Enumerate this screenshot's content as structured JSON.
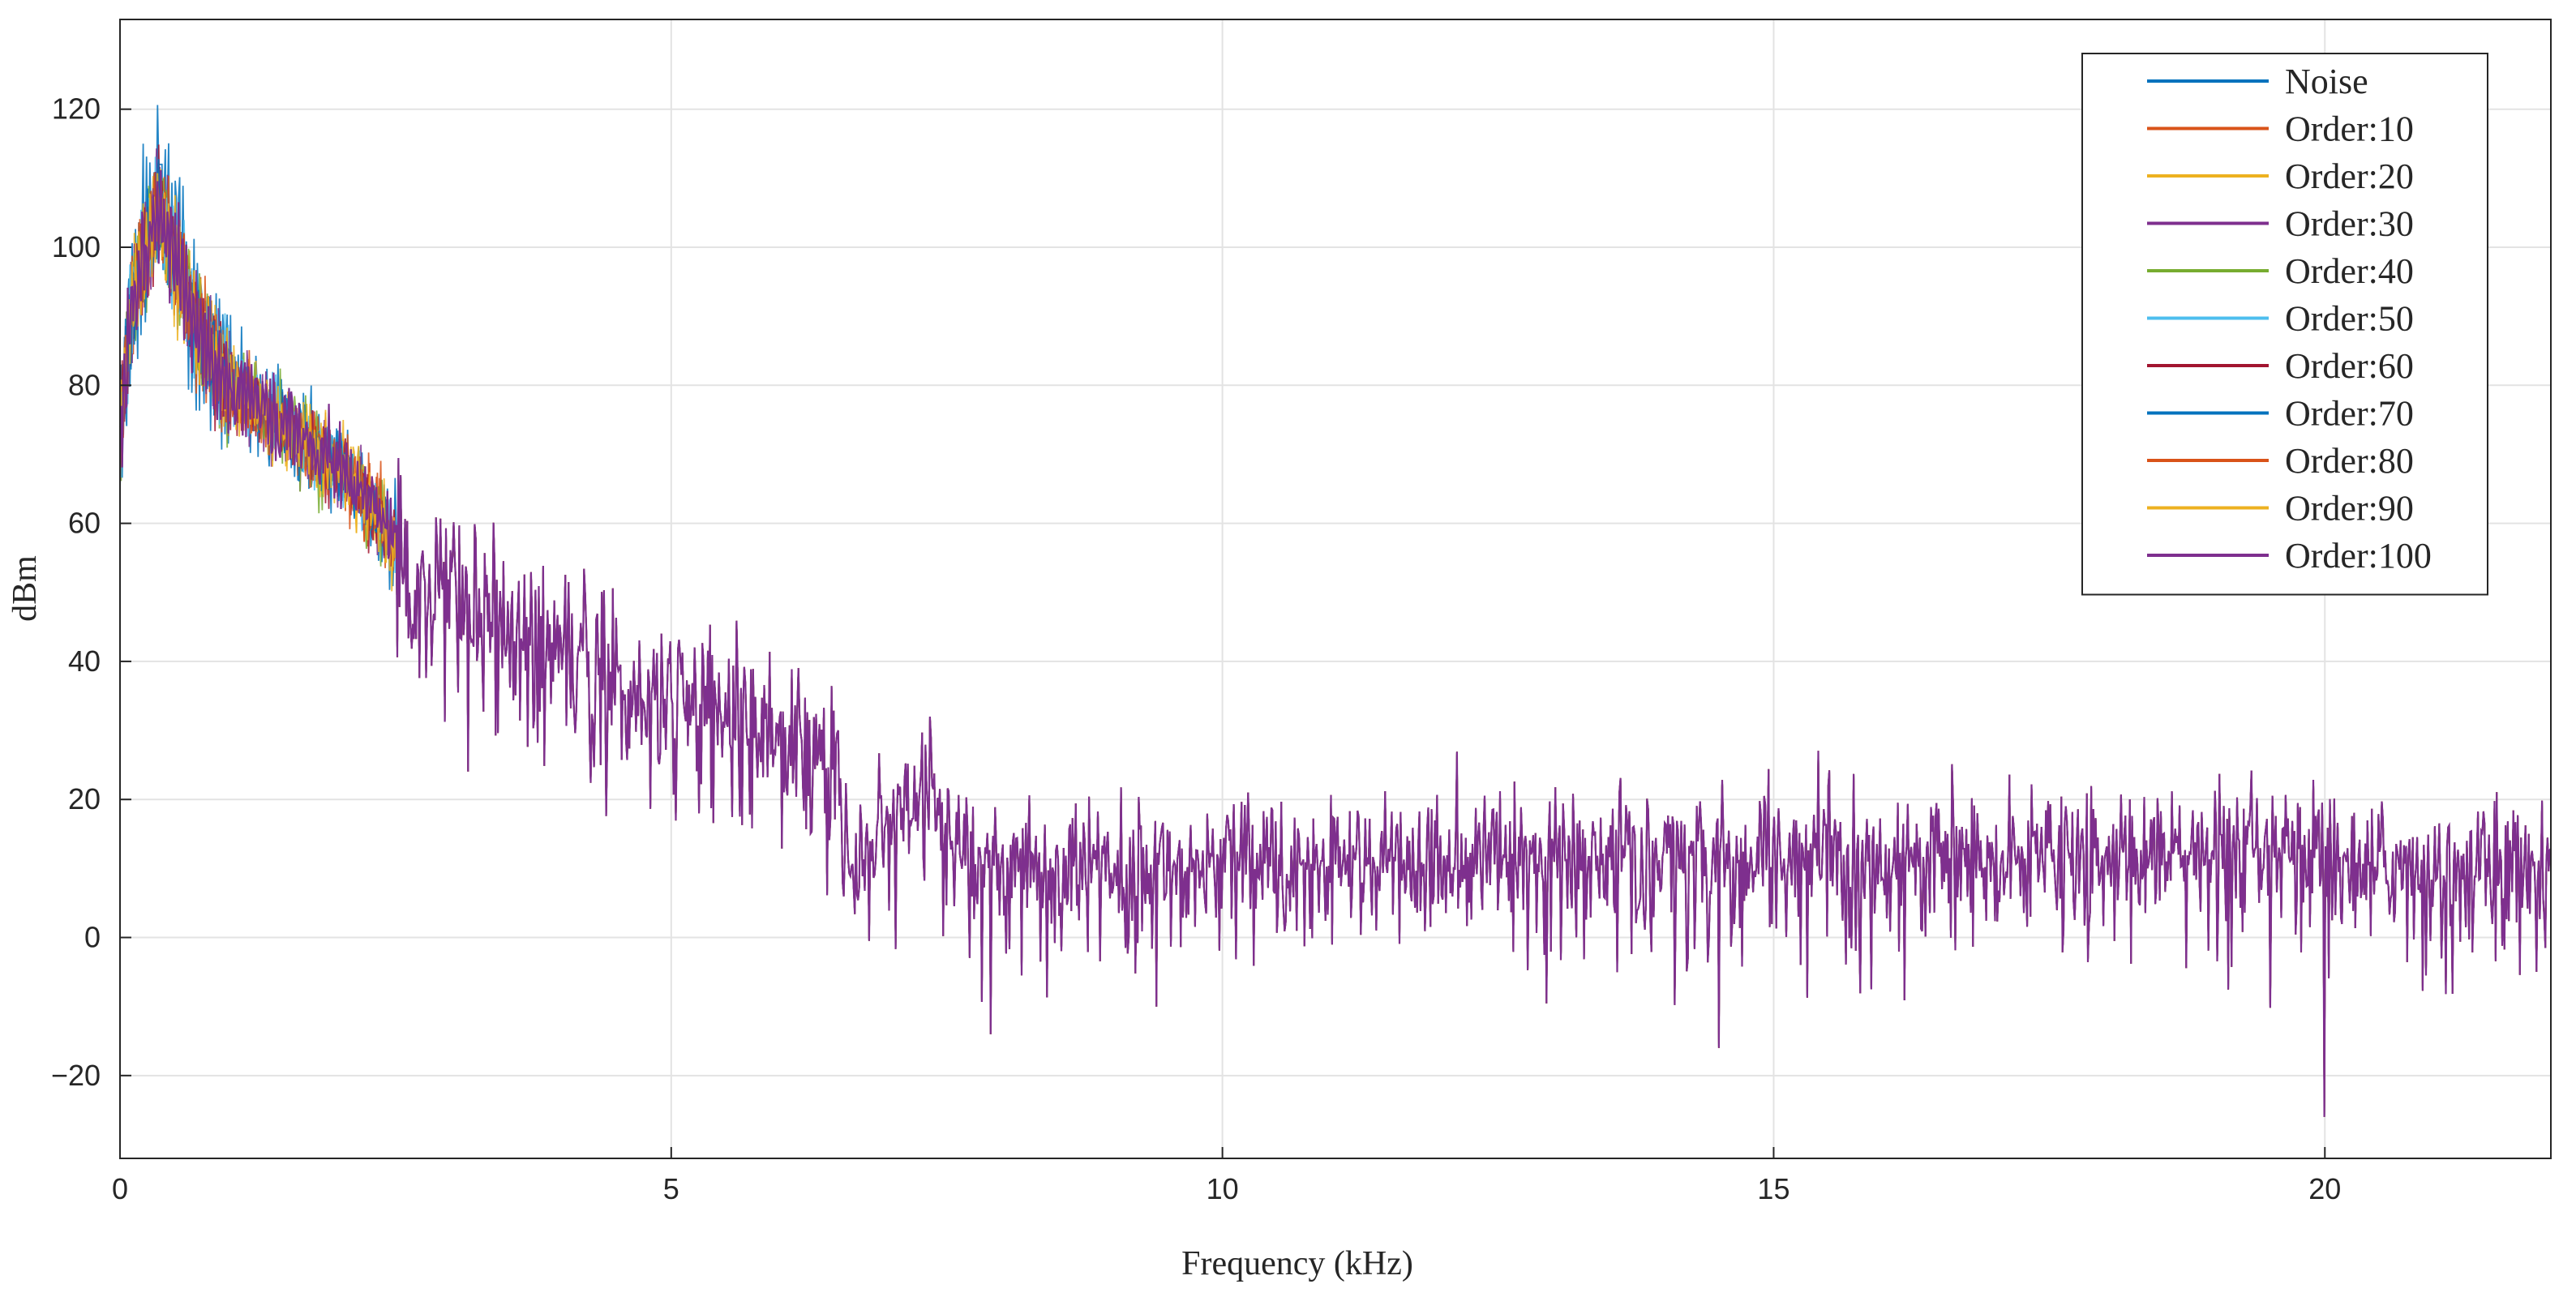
{
  "chart_data": {
    "type": "line",
    "title": "",
    "xlabel": "Frequency (kHz)",
    "ylabel": "dBm",
    "xlim": [
      0,
      22.05
    ],
    "ylim": [
      -32,
      133
    ],
    "x_ticks": [
      0,
      5,
      10,
      15,
      20
    ],
    "y_ticks": [
      -20,
      0,
      20,
      40,
      60,
      80,
      100,
      120
    ],
    "grid": true,
    "legend_position": "top-right",
    "series": [
      {
        "name": "Noise",
        "color": "#0072BD"
      },
      {
        "name": "Order:10",
        "color": "#D95319"
      },
      {
        "name": "Order:20",
        "color": "#EDB120"
      },
      {
        "name": "Order:30",
        "color": "#7E2F8E"
      },
      {
        "name": "Order:40",
        "color": "#77AC30"
      },
      {
        "name": "Order:50",
        "color": "#4DBEEE"
      },
      {
        "name": "Order:60",
        "color": "#A2142F"
      },
      {
        "name": "Order:70",
        "color": "#0072BD"
      },
      {
        "name": "Order:80",
        "color": "#D95319"
      },
      {
        "name": "Order:90",
        "color": "#EDB120"
      },
      {
        "name": "Order:100",
        "color": "#7E2F8E"
      }
    ],
    "envelope": {
      "x": [
        0,
        0.1,
        0.25,
        0.35,
        0.5,
        0.7,
        1.0,
        1.5,
        2.0,
        2.4,
        2.6,
        3.0,
        3.5,
        4.0,
        4.5,
        5.0,
        5.5,
        6.0,
        6.5,
        6.6,
        7.0,
        7.35,
        7.6,
        8.0,
        10.0,
        12.0,
        13.5,
        15.5,
        18.0,
        20.0,
        22.05
      ],
      "y": [
        72,
        92,
        100,
        106,
        98,
        88,
        80,
        74,
        68,
        60,
        53,
        50,
        45,
        41,
        39,
        34,
        32,
        30,
        28,
        11,
        16,
        20,
        12,
        11,
        11,
        11,
        12,
        12,
        12,
        11,
        10
      ]
    },
    "notable_dips": [
      {
        "x": 7.9,
        "y": -14
      },
      {
        "x": 9.4,
        "y": -10
      },
      {
        "x": 14.5,
        "y": -16
      },
      {
        "x": 20.0,
        "y": -26
      }
    ],
    "notable_peaks": [
      {
        "x": 0.37,
        "y": 112
      },
      {
        "x": 7.35,
        "y": 32
      },
      {
        "x": 13.6,
        "y": 21
      },
      {
        "x": 15.5,
        "y": 22
      }
    ]
  }
}
